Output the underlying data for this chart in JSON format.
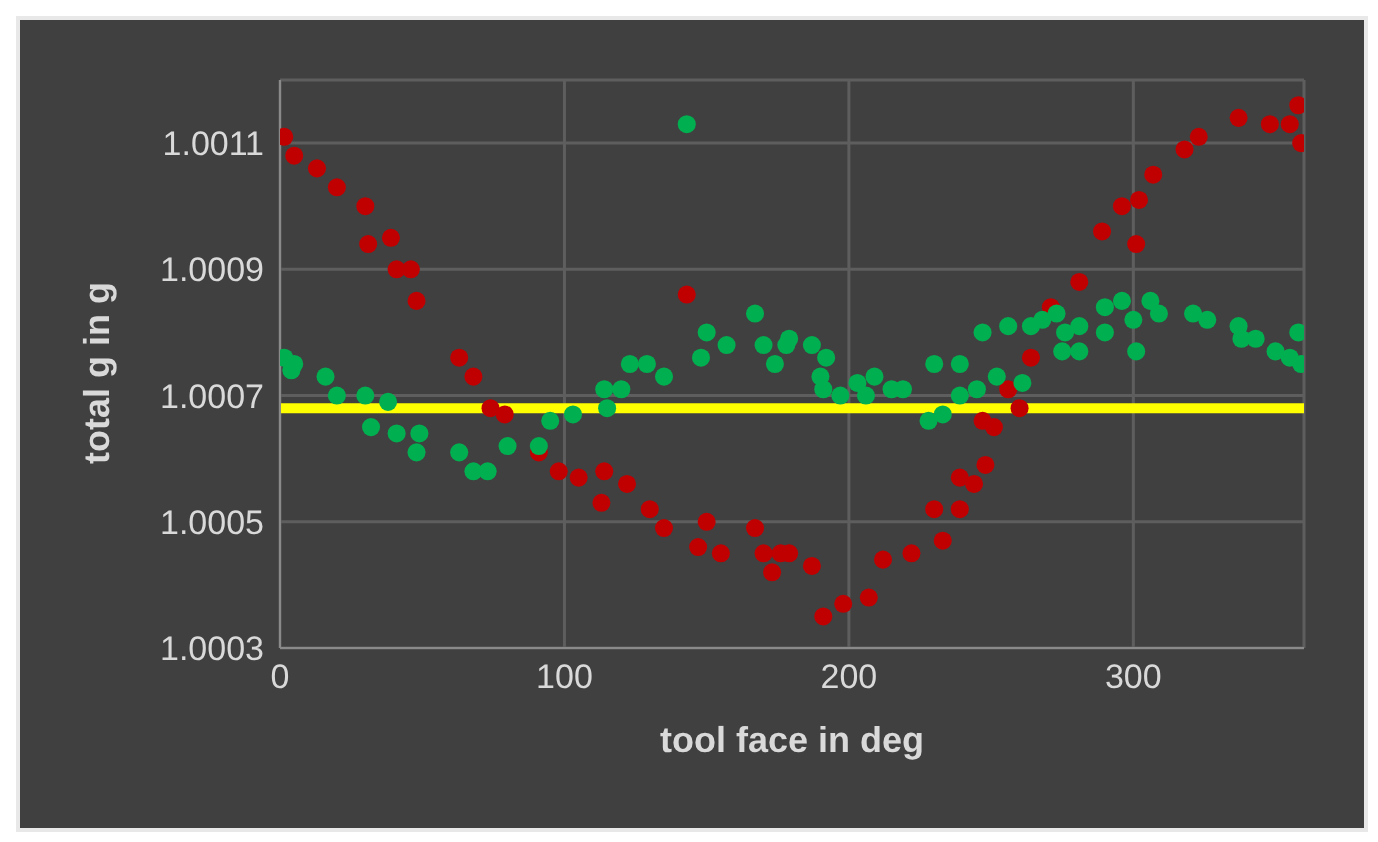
{
  "chart_data": {
    "type": "scatter",
    "xlabel": "tool face in deg",
    "ylabel": "total g in g",
    "xlim": [
      0,
      360
    ],
    "xticks": [
      0,
      100,
      200,
      300
    ],
    "ylim": [
      1.0003,
      1.0012
    ],
    "yticks": [
      1.0003,
      1.0005,
      1.0007,
      1.0009,
      1.0011
    ],
    "grid": true,
    "legend": false,
    "marker": "circle",
    "ref_lines": [
      {
        "axis": "y",
        "value": 1.00068,
        "color": "#ffff00"
      }
    ],
    "series": [
      {
        "color": "#c00000",
        "x": [
          1.5,
          5,
          13,
          20,
          30,
          31,
          39,
          41,
          46,
          48,
          63,
          68,
          74,
          79,
          91,
          98,
          105,
          114,
          113,
          122,
          130,
          135,
          143,
          150,
          147,
          155,
          167,
          170,
          173,
          176,
          179,
          187,
          191,
          198,
          207,
          212,
          222,
          230,
          233,
          239,
          239,
          244,
          248,
          247,
          251,
          256,
          260,
          264,
          271,
          281,
          289,
          296,
          301,
          302,
          307,
          318,
          323,
          337,
          348,
          355,
          358,
          359
        ],
        "values": [
          1.00111,
          1.00108,
          1.00106,
          1.00103,
          1.001,
          1.00094,
          1.00095,
          1.0009,
          1.0009,
          1.00085,
          1.00076,
          1.00073,
          1.00068,
          1.00067,
          1.00061,
          1.00058,
          1.00057,
          1.00058,
          1.00053,
          1.00056,
          1.00052,
          1.00049,
          1.00086,
          1.0005,
          1.00046,
          1.00045,
          1.00049,
          1.00045,
          1.00042,
          1.00045,
          1.00045,
          1.00043,
          1.00035,
          1.00037,
          1.00038,
          1.00044,
          1.00045,
          1.00052,
          1.00047,
          1.00052,
          1.00057,
          1.00056,
          1.00059,
          1.00066,
          1.00065,
          1.00071,
          1.00068,
          1.00076,
          1.00084,
          1.00088,
          1.00096,
          1.001,
          1.00094,
          1.00101,
          1.00105,
          1.00109,
          1.00111,
          1.00114,
          1.00113,
          1.00113,
          1.00116,
          1.0011
        ]
      },
      {
        "color": "#00b050",
        "x": [
          1.5,
          4,
          5,
          16,
          20,
          30,
          32,
          38,
          41,
          48,
          49,
          63,
          68,
          73,
          80,
          91,
          95,
          103,
          114,
          115,
          120,
          123,
          129,
          135,
          143,
          148,
          150,
          157,
          167,
          170,
          174,
          178,
          179,
          187,
          190,
          191,
          192,
          197,
          203,
          206,
          209,
          215,
          219,
          228,
          230,
          233,
          239,
          239,
          245,
          247,
          252,
          256,
          261,
          264,
          268,
          273,
          275,
          276,
          281,
          281,
          290,
          290,
          296,
          300,
          301,
          306,
          309,
          321,
          326,
          337,
          338,
          343,
          350,
          355,
          358,
          359
        ],
        "values": [
          1.00076,
          1.00074,
          1.00075,
          1.00073,
          1.0007,
          1.0007,
          1.00065,
          1.00069,
          1.00064,
          1.00061,
          1.00064,
          1.00061,
          1.00058,
          1.00058,
          1.00062,
          1.00062,
          1.00066,
          1.00067,
          1.00071,
          1.00068,
          1.00071,
          1.00075,
          1.00075,
          1.00073,
          1.00113,
          1.00076,
          1.0008,
          1.00078,
          1.00083,
          1.00078,
          1.00075,
          1.00078,
          1.00079,
          1.00078,
          1.00073,
          1.00071,
          1.00076,
          1.0007,
          1.00072,
          1.0007,
          1.00073,
          1.00071,
          1.00071,
          1.00066,
          1.00075,
          1.00067,
          1.0007,
          1.00075,
          1.00071,
          1.0008,
          1.00073,
          1.00081,
          1.00072,
          1.00081,
          1.00082,
          1.00083,
          1.00077,
          1.0008,
          1.00081,
          1.00077,
          1.00084,
          1.0008,
          1.00085,
          1.00082,
          1.00077,
          1.00085,
          1.00083,
          1.00083,
          1.00082,
          1.00081,
          1.00079,
          1.00079,
          1.00077,
          1.00076,
          1.0008,
          1.00075
        ]
      }
    ]
  }
}
